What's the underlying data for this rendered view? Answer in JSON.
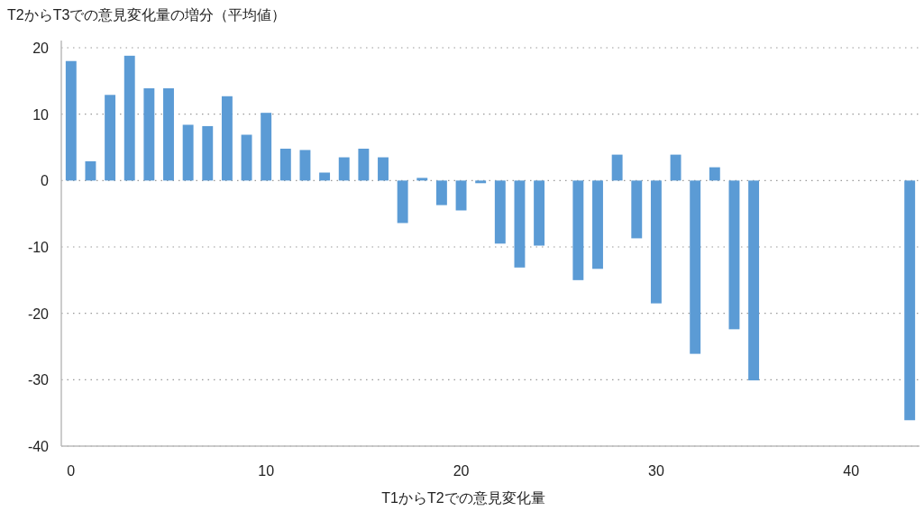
{
  "chart_data": {
    "type": "bar",
    "ylabel": "T2からT3での意見変化量の増分（平均値）",
    "xlabel": "T1からT2での意見変化量",
    "x": [
      0,
      1,
      2,
      3,
      4,
      5,
      6,
      7,
      8,
      9,
      10,
      11,
      12,
      13,
      14,
      15,
      16,
      17,
      18,
      19,
      20,
      21,
      22,
      23,
      24,
      25,
      26,
      27,
      28,
      29,
      30,
      31,
      32,
      33,
      34,
      35,
      36,
      37,
      38,
      39,
      40,
      41,
      42,
      43
    ],
    "values": [
      18.0,
      2.9,
      12.9,
      18.8,
      13.9,
      13.9,
      8.4,
      8.2,
      12.7,
      6.9,
      10.2,
      4.8,
      4.6,
      1.2,
      3.5,
      4.8,
      3.5,
      -6.4,
      0.4,
      -3.7,
      -4.5,
      -0.4,
      -9.5,
      -13.1,
      -9.8,
      null,
      -15.0,
      -13.3,
      3.9,
      -8.7,
      -18.5,
      3.9,
      -26.1,
      2.0,
      -22.4,
      -30.1,
      null,
      null,
      null,
      null,
      null,
      null,
      null,
      -36.1
    ],
    "color": "#5b9bd5",
    "xlim": [
      -0.5,
      43.5
    ],
    "ylim": [
      -40,
      20
    ],
    "xticks": [
      0,
      10,
      20,
      30,
      40
    ],
    "yticks": [
      -40,
      -30,
      -20,
      -10,
      0,
      10,
      20
    ],
    "grid": "y"
  }
}
